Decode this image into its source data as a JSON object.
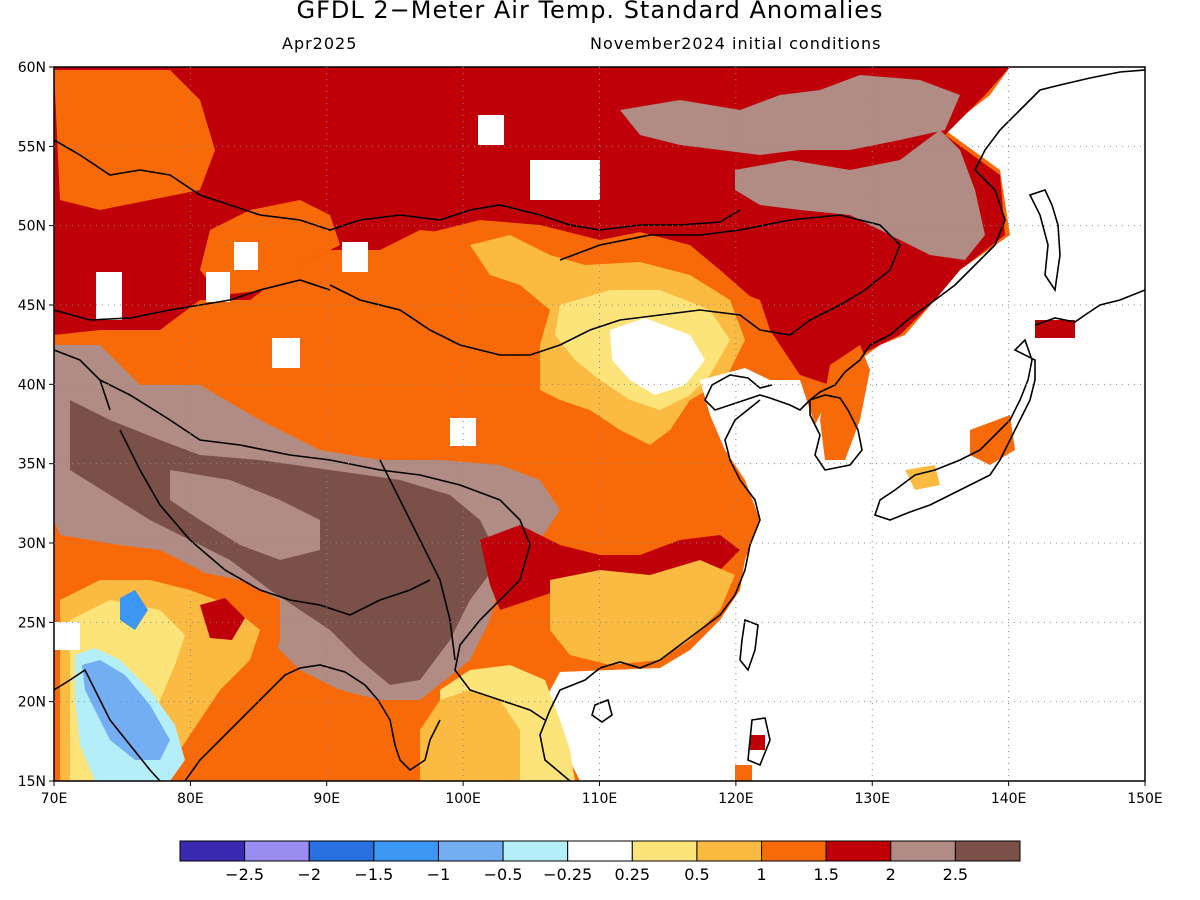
{
  "header": {
    "title": "GFDL 2−Meter Air Temp. Standard Anomalies",
    "valid_month": "Apr2025",
    "init": "November2024 initial conditions"
  },
  "map": {
    "lon_range": [
      70,
      150
    ],
    "lat_range": [
      15,
      60
    ],
    "lat_labels": [
      "60N",
      "55N",
      "50N",
      "45N",
      "40N",
      "35N",
      "30N",
      "25N",
      "20N",
      "15N"
    ],
    "lon_labels": [
      "70E",
      "80E",
      "90E",
      "100E",
      "110E",
      "120E",
      "130E",
      "140E",
      "150E"
    ],
    "grid_lines": "dotted"
  },
  "colorbar": {
    "colors": [
      "#3a2ab0",
      "#9a8cf0",
      "#2870e0",
      "#3c96f4",
      "#74aef2",
      "#b4eef8",
      "#ffffff",
      "#fde47a",
      "#fbba42",
      "#f86a08",
      "#c00008",
      "#b08c84",
      "#7a5048"
    ],
    "labels": [
      "−2.5",
      "−2",
      "−1.5",
      "−1",
      "−0.5",
      "−0.25",
      "0.25",
      "0.5",
      "1",
      "1.5",
      "2",
      "2.5"
    ]
  }
}
